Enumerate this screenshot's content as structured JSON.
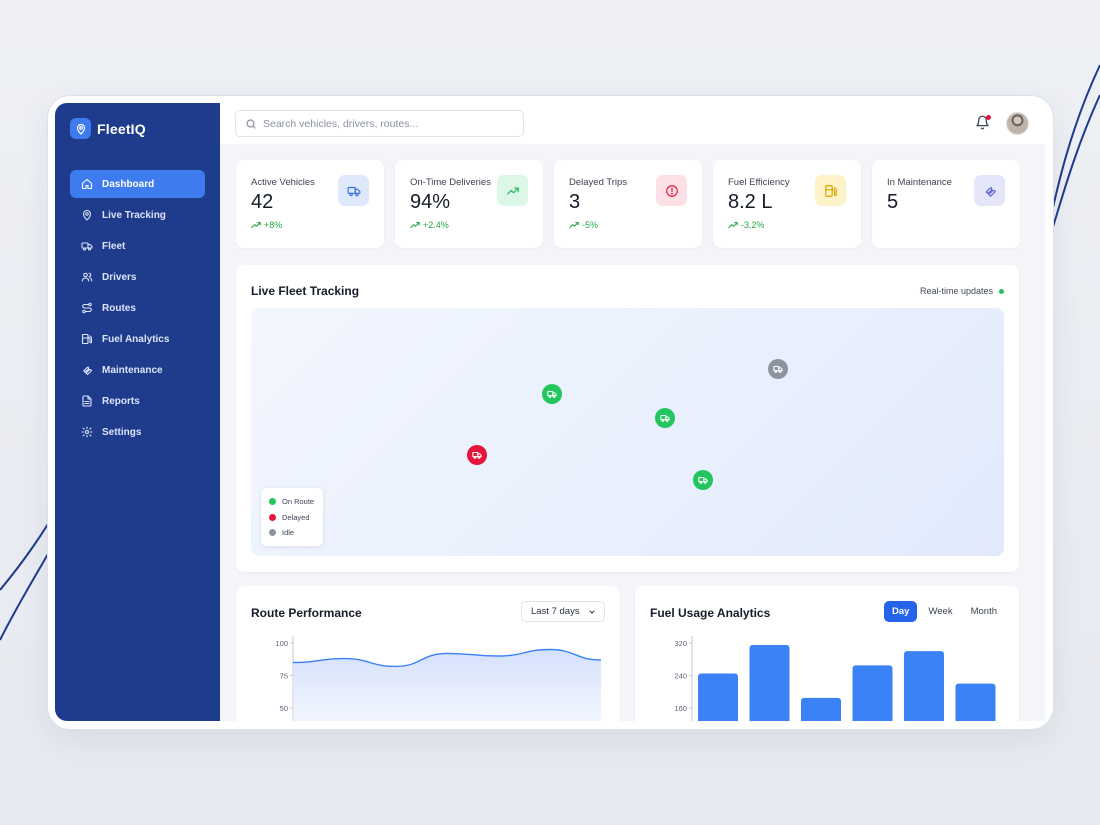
{
  "brand": {
    "name": "FleetIQ"
  },
  "sidebar": {
    "items": [
      {
        "key": "dashboard",
        "label": "Dashboard",
        "icon": "home-icon",
        "active": true
      },
      {
        "key": "live-tracking",
        "label": "Live Tracking",
        "icon": "map-pin-icon"
      },
      {
        "key": "fleet",
        "label": "Fleet",
        "icon": "truck-icon"
      },
      {
        "key": "drivers",
        "label": "Drivers",
        "icon": "users-icon"
      },
      {
        "key": "routes",
        "label": "Routes",
        "icon": "route-icon"
      },
      {
        "key": "fuel-analytics",
        "label": "Fuel Analytics",
        "icon": "fuel-icon"
      },
      {
        "key": "maintenance",
        "label": "Maintenance",
        "icon": "wrench-icon"
      },
      {
        "key": "reports",
        "label": "Reports",
        "icon": "document-icon"
      },
      {
        "key": "settings",
        "label": "Settings",
        "icon": "gear-icon"
      }
    ]
  },
  "header": {
    "search_placeholder": "Search vehicles, drivers, routes...",
    "search_value": ""
  },
  "stats": [
    {
      "label": "Active Vehicles",
      "value": "42",
      "delta": "+8%",
      "icon": "truck-icon",
      "icon_bg": "#dfe8fb",
      "icon_color": "#3b6fe0"
    },
    {
      "label": "On-Time Deliveries",
      "value": "94%",
      "delta": "+2.4%",
      "icon": "trending-up-icon",
      "icon_bg": "#dcf7e6",
      "icon_color": "#22b35b"
    },
    {
      "label": "Delayed Trips",
      "value": "3",
      "delta": "-5%",
      "icon": "alert-circle-icon",
      "icon_bg": "#fde0e5",
      "icon_color": "#e5163b"
    },
    {
      "label": "Fuel Efficiency",
      "value": "8.2 L",
      "delta": "-3.2%",
      "icon": "fuel-icon",
      "icon_bg": "#fdf2c8",
      "icon_color": "#d9a300"
    },
    {
      "label": "In Maintenance",
      "value": "5",
      "delta": "",
      "icon": "wrench-icon",
      "icon_bg": "#e6e6fb",
      "icon_color": "#5a5fd6"
    }
  ],
  "tracking": {
    "title": "Live Fleet Tracking",
    "realtime_label": "Real-time updates",
    "legend": [
      {
        "label": "On Route",
        "color": "#22c55e"
      },
      {
        "label": "Delayed",
        "color": "#e5163b"
      },
      {
        "label": "Idle",
        "color": "#8e949f"
      }
    ],
    "status_colors": {
      "on-route": "#22c55e",
      "delayed": "#e5163b",
      "idle": "#8e949f"
    }
  },
  "route_performance": {
    "title": "Route Performance",
    "range_select": "Last 7 days"
  },
  "fuel_usage": {
    "title": "Fuel Usage Analytics",
    "tabs": [
      {
        "label": "Day",
        "active": true
      },
      {
        "label": "Week",
        "active": false
      },
      {
        "label": "Month",
        "active": false
      }
    ]
  },
  "chart_data": [
    {
      "type": "area",
      "title": "Route Performance",
      "ylim": [
        0,
        100
      ],
      "yticks": [
        "100",
        "75",
        "50"
      ],
      "x": [
        1,
        2,
        3,
        4,
        5,
        6,
        7
      ],
      "values": [
        85,
        88,
        82,
        92,
        90,
        95,
        87
      ],
      "color": "#3b82f6"
    },
    {
      "type": "bar",
      "title": "Fuel Usage Analytics",
      "ylim": [
        0,
        320
      ],
      "yticks": [
        "320",
        "240",
        "160"
      ],
      "values": [
        245,
        315,
        185,
        265,
        300,
        220
      ],
      "color": "#3b82f6"
    }
  ]
}
